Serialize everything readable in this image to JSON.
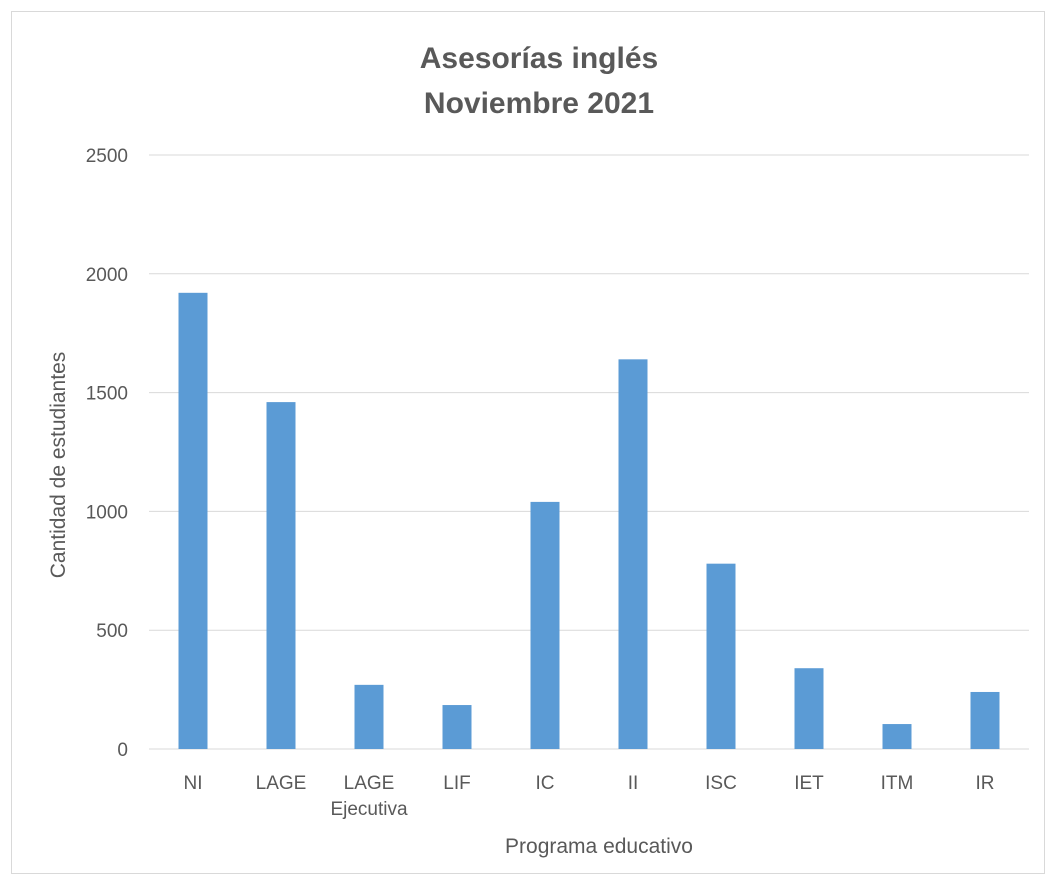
{
  "chart_data": {
    "type": "bar",
    "title": [
      "Asesorías inglés",
      "Noviembre 2021"
    ],
    "xlabel": "Programa educativo",
    "ylabel": "Cantidad de estudiantes",
    "categories": [
      "NI",
      "LAGE",
      "LAGE Ejecutiva",
      "LIF",
      "IC",
      "II",
      "ISC",
      "IET",
      "ITM",
      "IR"
    ],
    "category_label_lines": [
      [
        "NI"
      ],
      [
        "LAGE"
      ],
      [
        "LAGE",
        "Ejecutiva"
      ],
      [
        "LIF"
      ],
      [
        "IC"
      ],
      [
        "II"
      ],
      [
        "ISC"
      ],
      [
        "IET"
      ],
      [
        "ITM"
      ],
      [
        "IR"
      ]
    ],
    "values": [
      1920,
      1460,
      270,
      185,
      1040,
      1640,
      780,
      340,
      105,
      240
    ],
    "ylim": [
      0,
      2500
    ],
    "yticks": [
      0,
      500,
      1000,
      1500,
      2000,
      2500
    ],
    "grid": true,
    "legend": "none",
    "colors": {
      "bar": "#5b9bd5",
      "grid": "#d9d9d9",
      "text": "#595959"
    }
  }
}
